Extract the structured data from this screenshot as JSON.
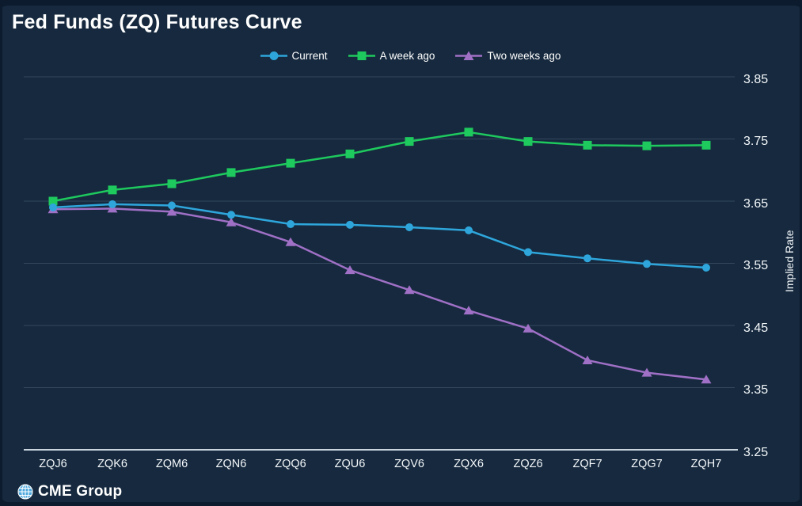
{
  "header": {
    "title": "Fed Funds (ZQ) Futures Curve"
  },
  "footer": {
    "brand": "CME Group",
    "globe_icon": "cme-globe-icon"
  },
  "colors": {
    "background": "#16293E",
    "border": "#0C1B2D",
    "gridline": "#33475D",
    "axis_line": "#C9D4DE",
    "text": "#FFFFFF",
    "blue": "#2EA6DB",
    "green": "#1EC95E",
    "purple": "#9F70C6",
    "globe_blue": "#4FA9DE"
  },
  "chart_data": {
    "type": "line",
    "title": "Fed Funds (ZQ) Futures Curve",
    "xlabel": "",
    "ylabel": "Implied Rate",
    "ylim": [
      3.25,
      3.85
    ],
    "yticks": [
      "3.85",
      "3.75",
      "3.65",
      "3.55",
      "3.45",
      "3.35",
      "3.25"
    ],
    "grid": true,
    "legend_position": "top",
    "categories": [
      "ZQJ6",
      "ZQK6",
      "ZQM6",
      "ZQN6",
      "ZQQ6",
      "ZQU6",
      "ZQV6",
      "ZQX6",
      "ZQZ6",
      "ZQF7",
      "ZQG7",
      "ZQH7"
    ],
    "series": [
      {
        "name": "Current",
        "marker": "circle",
        "color": "#2EA6DB",
        "values": [
          3.64,
          3.645,
          3.643,
          3.628,
          3.613,
          3.612,
          3.608,
          3.603,
          3.568,
          3.558,
          3.549,
          3.543
        ]
      },
      {
        "name": "A week ago",
        "marker": "square",
        "color": "#1EC95E",
        "values": [
          3.65,
          3.668,
          3.678,
          3.696,
          3.711,
          3.726,
          3.746,
          3.761,
          3.746,
          3.74,
          3.739,
          3.74
        ]
      },
      {
        "name": "Two weeks ago",
        "marker": "triangle",
        "color": "#9F70C6",
        "values": [
          3.637,
          3.638,
          3.633,
          3.616,
          3.584,
          3.539,
          3.507,
          3.474,
          3.445,
          3.394,
          3.374,
          3.363
        ]
      }
    ]
  }
}
